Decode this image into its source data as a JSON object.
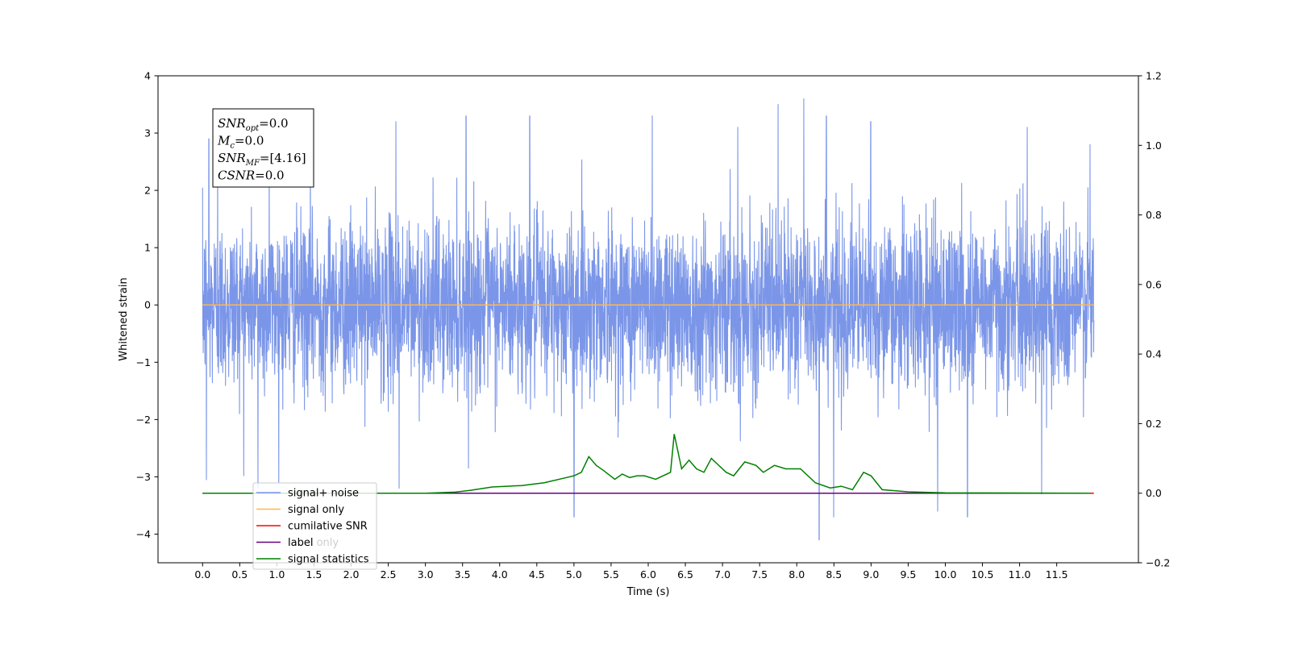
{
  "chart_data": {
    "type": "line",
    "xlabel": "Time (s)",
    "ylabel": "Whitened strain",
    "xlim": [
      -0.6,
      12.6
    ],
    "ylim": [
      -4.5,
      4.0
    ],
    "y2lim": [
      -0.2,
      1.2
    ],
    "grid": false,
    "legend_position": "lower-left",
    "x_ticks": [
      0.0,
      0.5,
      1.0,
      1.5,
      2.0,
      2.5,
      3.0,
      3.5,
      4.0,
      4.5,
      5.0,
      5.5,
      6.0,
      6.5,
      7.0,
      7.5,
      8.0,
      8.5,
      9.0,
      9.5,
      10.0,
      10.5,
      11.0,
      11.5
    ],
    "x_tick_labels": [
      "0.0",
      "0.5",
      "1.0",
      "1.5",
      "2.0",
      "2.5",
      "3.0",
      "3.5",
      "4.0",
      "4.5",
      "5.0",
      "5.5",
      "6.0",
      "6.5",
      "7.0",
      "7.5",
      "8.0",
      "8.5",
      "9.0",
      "9.5",
      "10.0",
      "10.5",
      "11.0",
      "11.5"
    ],
    "y_ticks": [
      -4,
      -3,
      -2,
      -1,
      0,
      1,
      2,
      3,
      4
    ],
    "y_tick_labels": [
      "−4",
      "−3",
      "−2",
      "−1",
      "0",
      "1",
      "2",
      "3",
      "4"
    ],
    "y2_ticks": [
      -0.2,
      0.0,
      0.2,
      0.4,
      0.6,
      0.8,
      1.0,
      1.2
    ],
    "y2_tick_labels": [
      "−0.2",
      "0.0",
      "0.2",
      "0.4",
      "0.6",
      "0.8",
      "1.0",
      "1.2"
    ],
    "series": [
      {
        "name": "signal+ noise",
        "color": "#7b96e8",
        "axis": "left",
        "style": "dense-noise",
        "x_range": [
          0.0,
          12.0
        ],
        "typical_range": [
          -1.5,
          1.6
        ],
        "extreme_range": [
          -4.1,
          3.6
        ],
        "peaks": [
          {
            "x": 0.08,
            "y": 2.9
          },
          {
            "x": 0.2,
            "y": 3.1
          },
          {
            "x": 0.9,
            "y": 2.6
          },
          {
            "x": 1.45,
            "y": 2.9
          },
          {
            "x": 2.6,
            "y": 3.2
          },
          {
            "x": 3.55,
            "y": 3.3
          },
          {
            "x": 4.4,
            "y": 3.3
          },
          {
            "x": 6.05,
            "y": 3.3
          },
          {
            "x": 7.2,
            "y": 3.1
          },
          {
            "x": 7.75,
            "y": 3.5
          },
          {
            "x": 8.1,
            "y": 3.6
          },
          {
            "x": 8.4,
            "y": 3.3
          },
          {
            "x": 9.0,
            "y": 3.2
          },
          {
            "x": 11.1,
            "y": 3.1
          },
          {
            "x": 11.95,
            "y": 2.8
          },
          {
            "x": 0.05,
            "y": -3.05
          },
          {
            "x": 0.75,
            "y": -3.2
          },
          {
            "x": 2.65,
            "y": -3.2
          },
          {
            "x": 5.0,
            "y": -3.7
          },
          {
            "x": 8.3,
            "y": -4.1
          },
          {
            "x": 8.5,
            "y": -3.7
          },
          {
            "x": 9.9,
            "y": -3.6
          },
          {
            "x": 10.3,
            "y": -3.7
          },
          {
            "x": 11.3,
            "y": -3.3
          }
        ]
      },
      {
        "name": "signal only",
        "color": "#ffb74d",
        "axis": "left",
        "x": [
          0.0,
          12.0
        ],
        "y": [
          0.0,
          0.0
        ]
      },
      {
        "name": "cumilative SNR",
        "color": "#ff0000",
        "axis": "right",
        "x": [
          0.0,
          12.0
        ],
        "y": [
          0.0,
          0.0
        ]
      },
      {
        "name": "label",
        "color": "#6a0080",
        "axis": "right",
        "x": [
          0.0,
          11.95
        ],
        "y": [
          0.0,
          0.0
        ]
      },
      {
        "name": "signal statistics",
        "color": "#008000",
        "axis": "right",
        "x": [
          0.0,
          2.0,
          3.0,
          3.4,
          3.6,
          3.9,
          4.1,
          4.3,
          4.6,
          4.9,
          5.0,
          5.1,
          5.2,
          5.3,
          5.4,
          5.55,
          5.65,
          5.75,
          5.85,
          5.95,
          6.1,
          6.3,
          6.35,
          6.45,
          6.55,
          6.65,
          6.75,
          6.85,
          7.05,
          7.15,
          7.3,
          7.45,
          7.55,
          7.7,
          7.85,
          8.05,
          8.25,
          8.45,
          8.6,
          8.75,
          8.9,
          9.0,
          9.15,
          9.5,
          10.0,
          11.95
        ],
        "y": [
          0.0,
          0.0,
          0.0,
          0.003,
          0.008,
          0.018,
          0.02,
          0.022,
          0.03,
          0.045,
          0.05,
          0.06,
          0.105,
          0.08,
          0.065,
          0.04,
          0.055,
          0.045,
          0.05,
          0.05,
          0.04,
          0.06,
          0.17,
          0.07,
          0.095,
          0.07,
          0.06,
          0.1,
          0.06,
          0.05,
          0.09,
          0.08,
          0.06,
          0.08,
          0.07,
          0.07,
          0.03,
          0.015,
          0.02,
          0.01,
          0.06,
          0.05,
          0.01,
          0.004,
          0.001,
          0.0
        ]
      }
    ],
    "legend": [
      "signal+ noise",
      "signal only",
      "cumilative SNR",
      "label",
      "signal statistics"
    ],
    "hidden_legend_text": "label only",
    "annotation": [
      {
        "main": "SNR",
        "sub": "opt",
        "value": "=0.0"
      },
      {
        "main": "M",
        "sub": "c",
        "value": "=0.0"
      },
      {
        "main": "SNR",
        "sub": "MF",
        "value": "=[4.16]"
      },
      {
        "main": "CSNR",
        "sub": "",
        "value": "=0.0"
      }
    ]
  }
}
